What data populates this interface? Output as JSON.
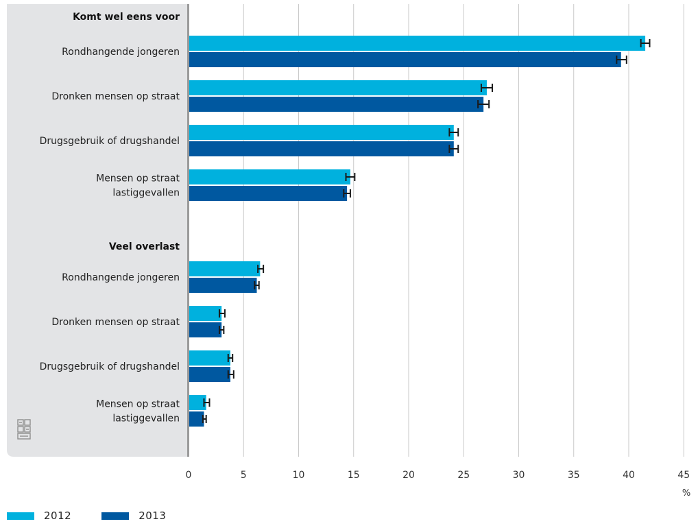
{
  "chart_data": {
    "type": "bar",
    "orientation": "horizontal",
    "unit": "%",
    "xlim": [
      0,
      45
    ],
    "xticks": [
      0,
      5,
      10,
      15,
      20,
      25,
      30,
      35,
      40,
      45
    ],
    "grid": true,
    "legend_position": "bottom-left",
    "groups": [
      {
        "heading": "Komt wel eens voor",
        "categories": [
          {
            "label": [
              "Rondhangende jongeren"
            ],
            "values": [
              41.5,
              39.3
            ],
            "errors": [
              [
                41.1,
                41.9
              ],
              [
                38.9,
                39.8
              ]
            ]
          },
          {
            "label": [
              "Dronken mensen op straat"
            ],
            "values": [
              27.1,
              26.8
            ],
            "errors": [
              [
                26.6,
                27.6
              ],
              [
                26.3,
                27.3
              ]
            ]
          },
          {
            "label": [
              "Drugsgebruik of drugshandel"
            ],
            "values": [
              24.1,
              24.1
            ],
            "errors": [
              [
                23.7,
                24.5
              ],
              [
                23.7,
                24.5
              ]
            ]
          },
          {
            "label": [
              "Mensen op straat",
              "lastiggevallen"
            ],
            "values": [
              14.7,
              14.4
            ],
            "errors": [
              [
                14.3,
                15.1
              ],
              [
                14.1,
                14.7
              ]
            ]
          }
        ]
      },
      {
        "heading": "Veel overlast",
        "categories": [
          {
            "label": [
              "Rondhangende jongeren"
            ],
            "values": [
              6.5,
              6.2
            ],
            "errors": [
              [
                6.3,
                6.8
              ],
              [
                6.0,
                6.4
              ]
            ]
          },
          {
            "label": [
              "Dronken mensen op straat"
            ],
            "values": [
              3.0,
              3.0
            ],
            "errors": [
              [
                2.8,
                3.3
              ],
              [
                2.8,
                3.2
              ]
            ]
          },
          {
            "label": [
              "Drugsgebruik of drugshandel"
            ],
            "values": [
              3.8,
              3.8
            ],
            "errors": [
              [
                3.6,
                4.0
              ],
              [
                3.6,
                4.1
              ]
            ]
          },
          {
            "label": [
              "Mensen op straat",
              "lastiggevallen"
            ],
            "values": [
              1.6,
              1.4
            ],
            "errors": [
              [
                1.4,
                1.9
              ],
              [
                1.3,
                1.6
              ]
            ]
          }
        ]
      }
    ],
    "series": [
      {
        "name": "2012",
        "color": "#00b1de"
      },
      {
        "name": "2013",
        "color": "#0058a0"
      }
    ]
  },
  "legend": {
    "s2012": "2012",
    "s2013": "2013"
  },
  "logo_icon": "cbs-logo-icon"
}
